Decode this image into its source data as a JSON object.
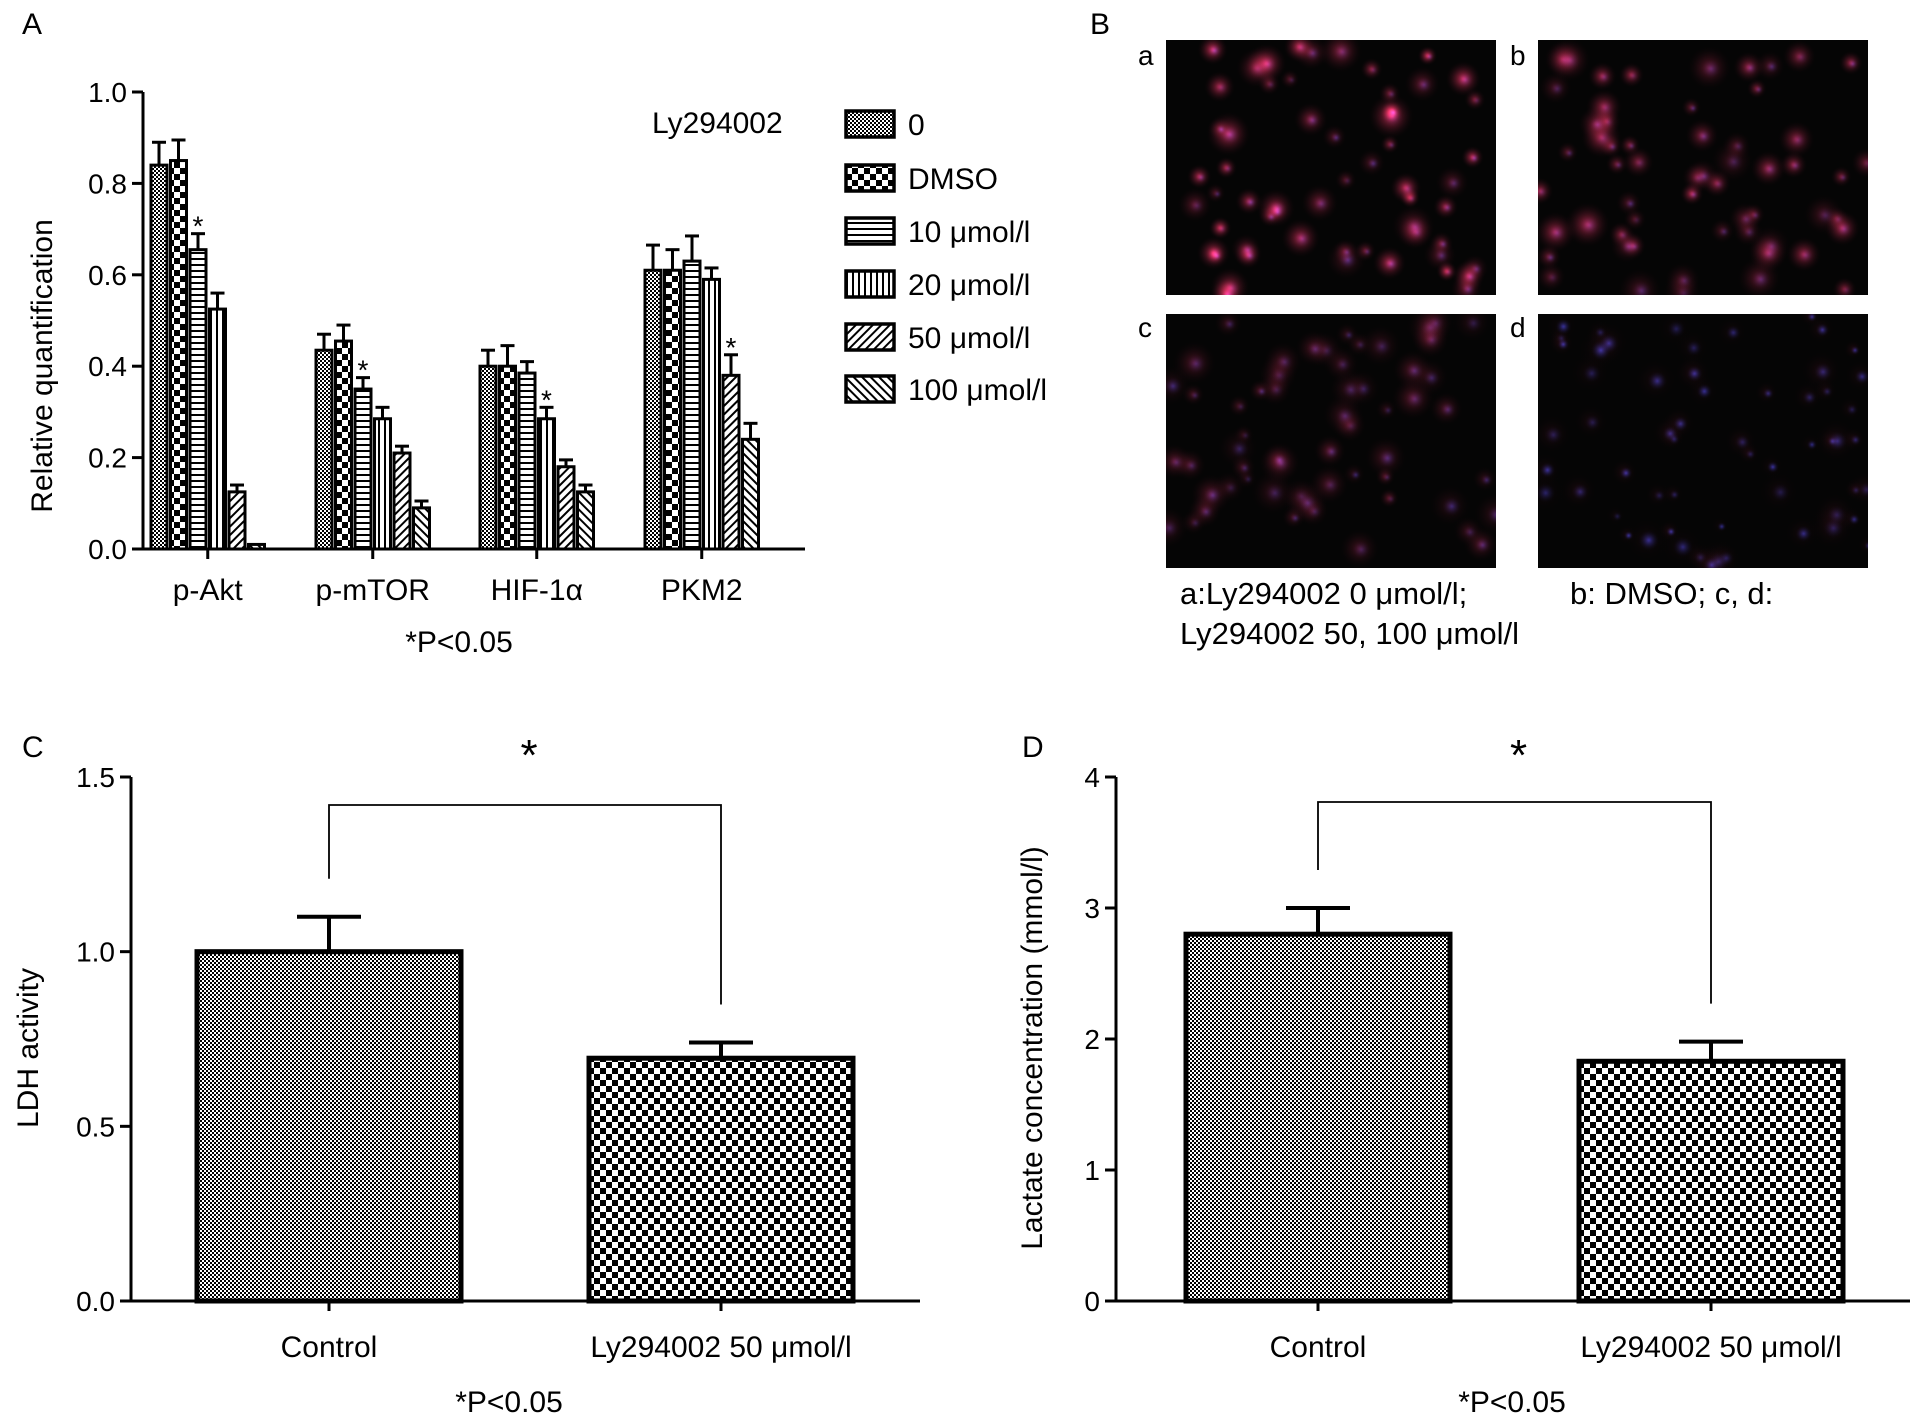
{
  "colors": {
    "ink": "#000000",
    "background": "#ffffff",
    "micro_bg": "#050505",
    "stain_red": "#c0284e",
    "stain_blue": "#3c3ccd"
  },
  "panel_letters": {
    "a": "A",
    "b": "B",
    "c": "C",
    "d": "D"
  },
  "chart_data": [
    {
      "id": "A",
      "type": "bar",
      "title": "",
      "xlabel": "",
      "ylabel": "Relative quantification",
      "ylim": [
        0,
        1.0
      ],
      "yticks": [
        "0.0",
        "0.2",
        "0.4",
        "0.6",
        "0.8",
        "1.0"
      ],
      "ytick_values": [
        0,
        0.2,
        0.4,
        0.6,
        0.8,
        1.0
      ],
      "grid": false,
      "legend_title": "Ly294002",
      "legend_position": "top-right",
      "categories": [
        "p-Akt",
        "p-mTOR",
        "HIF-1α",
        "PKM2"
      ],
      "series": [
        {
          "name": "0",
          "pattern": "fine-check",
          "values": [
            0.84,
            0.435,
            0.4,
            0.61
          ],
          "errors": [
            0.05,
            0.035,
            0.035,
            0.055
          ]
        },
        {
          "name": "DMSO",
          "pattern": "coarse-check",
          "values": [
            0.85,
            0.455,
            0.4,
            0.61
          ],
          "errors": [
            0.045,
            0.035,
            0.045,
            0.045
          ]
        },
        {
          "name": "10 μmol/l",
          "pattern": "horizontal",
          "values": [
            0.655,
            0.35,
            0.385,
            0.63
          ],
          "errors": [
            0.035,
            0.025,
            0.025,
            0.055
          ]
        },
        {
          "name": "20 μmol/l",
          "pattern": "vertical",
          "values": [
            0.525,
            0.285,
            0.285,
            0.59
          ],
          "errors": [
            0.035,
            0.025,
            0.025,
            0.025
          ]
        },
        {
          "name": "50 μmol/l",
          "pattern": "diagonal",
          "values": [
            0.125,
            0.21,
            0.18,
            0.38
          ],
          "errors": [
            0.015,
            0.015,
            0.015,
            0.045
          ]
        },
        {
          "name": "100 μmol/l",
          "pattern": "anti-diagonal",
          "values": [
            0.01,
            0.09,
            0.125,
            0.24
          ],
          "errors": [
            0.0,
            0.015,
            0.015,
            0.035
          ]
        }
      ],
      "significance_marks": [
        {
          "category": "p-Akt",
          "series": "10 μmol/l",
          "label": "*"
        },
        {
          "category": "p-mTOR",
          "series": "10 μmol/l",
          "label": "*"
        },
        {
          "category": "HIF-1α",
          "series": "20 μmol/l",
          "label": "*"
        },
        {
          "category": "PKM2",
          "series": "50 μmol/l",
          "label": "*"
        }
      ],
      "footnote": "*P<0.05"
    },
    {
      "id": "C",
      "type": "bar",
      "title": "",
      "xlabel": "",
      "ylabel": "LDH activity",
      "ylim": [
        0,
        1.5
      ],
      "yticks": [
        "0.0",
        "0.5",
        "1.0",
        "1.5"
      ],
      "ytick_values": [
        0,
        0.5,
        1.0,
        1.5
      ],
      "grid": false,
      "categories": [
        "Control",
        "Ly294002 50 μmol/l"
      ],
      "values": [
        1.0,
        0.695
      ],
      "errors": [
        0.1,
        0.045
      ],
      "patterns": [
        "fine-check",
        "coarse-check"
      ],
      "significance": {
        "label": "*",
        "between": [
          "Control",
          "Ly294002 50 μmol/l"
        ]
      },
      "footnote": "*P<0.05"
    },
    {
      "id": "D",
      "type": "bar",
      "title": "",
      "xlabel": "",
      "ylabel": "Lactate concentration (mmol/l)",
      "ylim": [
        0,
        4
      ],
      "yticks": [
        "0",
        "1",
        "2",
        "3",
        "4"
      ],
      "ytick_values": [
        0,
        1,
        2,
        3,
        4
      ],
      "grid": false,
      "categories": [
        "Control",
        "Ly294002 50 μmol/l"
      ],
      "values": [
        2.8,
        1.83
      ],
      "errors": [
        0.2,
        0.15
      ],
      "patterns": [
        "fine-check",
        "coarse-check"
      ],
      "significance": {
        "label": "*",
        "between": [
          "Control",
          "Ly294002 50 μmol/l"
        ]
      },
      "footnote": "*P<0.05"
    }
  ],
  "micrographs": {
    "panels": [
      {
        "label": "a",
        "red": 0.95,
        "blue": 0.45
      },
      {
        "label": "b",
        "red": 0.8,
        "blue": 0.4
      },
      {
        "label": "c",
        "red": 0.45,
        "blue": 0.45
      },
      {
        "label": "d",
        "red": 0.12,
        "blue": 0.7
      }
    ],
    "caption_line1_left": "a:Ly294002 0 μmol/l;",
    "caption_line1_right": "b: DMSO;  c, d:",
    "caption_line2": "Ly294002 50, 100 μmol/l"
  }
}
